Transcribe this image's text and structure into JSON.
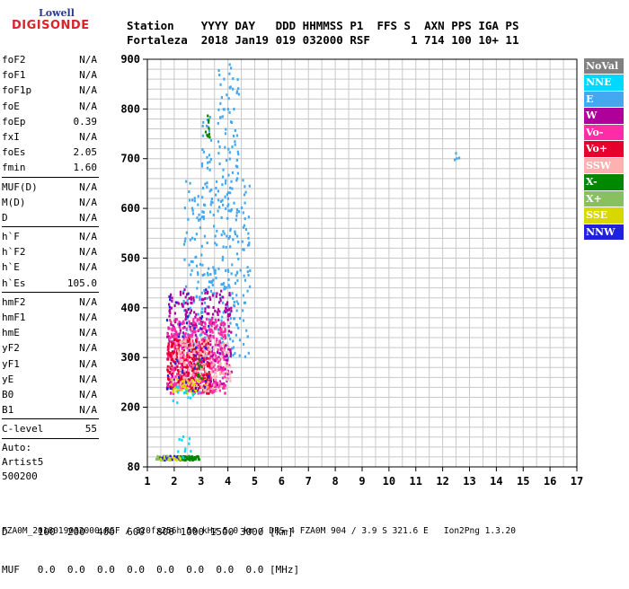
{
  "logo": {
    "line1": "Lowell",
    "line2": "DIGISONDE"
  },
  "header": {
    "line1": "Station    YYYY DAY   DDD HHMMSS P1  FFS S  AXN PPS IGA PS",
    "line2": "Fortaleza  2018 Jan19 019 032000 RSF      1 714 100 10+ 11"
  },
  "params": {
    "group1": [
      {
        "k": "foF2",
        "v": "N/A"
      },
      {
        "k": "foF1",
        "v": "N/A"
      },
      {
        "k": "foF1p",
        "v": "N/A"
      },
      {
        "k": "foE",
        "v": "N/A"
      },
      {
        "k": "foEp",
        "v": "0.39"
      },
      {
        "k": "fxI",
        "v": "N/A"
      },
      {
        "k": "foEs",
        "v": "2.05"
      },
      {
        "k": "fmin",
        "v": "1.60"
      }
    ],
    "group2": [
      {
        "k": "MUF(D)",
        "v": "N/A"
      },
      {
        "k": "M(D)",
        "v": "N/A"
      },
      {
        "k": "D",
        "v": "N/A"
      }
    ],
    "group3": [
      {
        "k": "h`F",
        "v": "N/A"
      },
      {
        "k": "h`F2",
        "v": "N/A"
      },
      {
        "k": "h`E",
        "v": "N/A"
      },
      {
        "k": "h`Es",
        "v": "105.0"
      }
    ],
    "group4": [
      {
        "k": "hmF2",
        "v": "N/A"
      },
      {
        "k": "hmF1",
        "v": "N/A"
      },
      {
        "k": "hmE",
        "v": "N/A"
      },
      {
        "k": "yF2",
        "v": "N/A"
      },
      {
        "k": "yF1",
        "v": "N/A"
      },
      {
        "k": "yE",
        "v": "N/A"
      },
      {
        "k": "B0",
        "v": "N/A"
      },
      {
        "k": "B1",
        "v": "N/A"
      }
    ],
    "group5": [
      {
        "k": "C-level",
        "v": "55"
      }
    ],
    "auto": [
      "Auto:",
      "Artist5",
      "500200"
    ]
  },
  "legend": [
    {
      "label": "NoVal",
      "color": "#808080"
    },
    {
      "label": "NNE",
      "color": "#00d8ff"
    },
    {
      "label": "E",
      "color": "#44a8f0"
    },
    {
      "label": "W",
      "color": "#b0009c"
    },
    {
      "label": "Vo-",
      "color": "#ff2ca8"
    },
    {
      "label": "Vo+",
      "color": "#e8002c"
    },
    {
      "label": "SSW",
      "color": "#ffb0b0"
    },
    {
      "label": "X-",
      "color": "#008800"
    },
    {
      "label": "X+",
      "color": "#88c060"
    },
    {
      "label": "SSE",
      "color": "#d8d800"
    },
    {
      "label": "NNW",
      "color": "#2020e0"
    }
  ],
  "footer": {
    "line1": "D     100  200  400  600  800 1000 1500 3000 [km]",
    "line2": "MUF   0.0  0.0  0.0  0.0  0.0  0.0  0.0  0.0 [MHz]",
    "line3": "FZA0M_2018019032000.RSF / 320fx256h 50 kHz 5.0 km / DPS-4 FZA0M 904 / 3.9 S 321.6 E   Ion2Png 1.3.20"
  },
  "chart_data": {
    "type": "scatter",
    "title": "",
    "xlabel": "",
    "ylabel": "",
    "xlim": [
      1,
      17
    ],
    "ylim": [
      80,
      900
    ],
    "xticks": [
      1,
      2,
      3,
      4,
      5,
      6,
      7,
      8,
      9,
      10,
      11,
      12,
      13,
      14,
      15,
      16,
      17
    ],
    "yticks": [
      80,
      200,
      300,
      400,
      500,
      600,
      700,
      800,
      900
    ],
    "grid": true,
    "clusters": [
      {
        "series": "E",
        "f": [
          2.3,
          4.8
        ],
        "h": [
          300,
          660
        ],
        "n": 320
      },
      {
        "series": "E",
        "f": [
          3.6,
          4.4
        ],
        "h": [
          660,
          900
        ],
        "n": 60
      },
      {
        "series": "E",
        "f": [
          3.0,
          3.4
        ],
        "h": [
          680,
          800
        ],
        "n": 20
      },
      {
        "series": "E",
        "f": [
          12.4,
          12.6
        ],
        "h": [
          700,
          715
        ],
        "n": 4
      },
      {
        "series": "W",
        "f": [
          1.7,
          4.1
        ],
        "h": [
          240,
          440
        ],
        "n": 340
      },
      {
        "series": "Vo-",
        "f": [
          1.7,
          3.9
        ],
        "h": [
          230,
          380
        ],
        "n": 420
      },
      {
        "series": "Vo+",
        "f": [
          1.7,
          3.3
        ],
        "h": [
          230,
          340
        ],
        "n": 260
      },
      {
        "series": "SSW",
        "f": [
          2.0,
          4.1
        ],
        "h": [
          235,
          340
        ],
        "n": 160
      },
      {
        "series": "SSE",
        "f": [
          1.8,
          3.2
        ],
        "h": [
          230,
          260
        ],
        "n": 40
      },
      {
        "series": "X-",
        "f": [
          2.1,
          2.9
        ],
        "h": [
          96,
          104
        ],
        "n": 60
      },
      {
        "series": "X-",
        "f": [
          2.8,
          3.0
        ],
        "h": [
          255,
          300
        ],
        "n": 10
      },
      {
        "series": "X-",
        "f": [
          3.1,
          3.3
        ],
        "h": [
          740,
          790
        ],
        "n": 10
      },
      {
        "series": "X+",
        "f": [
          1.3,
          1.8
        ],
        "h": [
          96,
          104
        ],
        "n": 24
      },
      {
        "series": "NNW",
        "f": [
          1.4,
          2.2
        ],
        "h": [
          96,
          104
        ],
        "n": 20
      },
      {
        "series": "NNW",
        "f": [
          1.6,
          3.3
        ],
        "h": [
          230,
          440
        ],
        "n": 40
      },
      {
        "series": "SSE",
        "f": [
          1.4,
          2.2
        ],
        "h": [
          96,
          104
        ],
        "n": 14
      },
      {
        "series": "NNE",
        "f": [
          1.9,
          2.6
        ],
        "h": [
          100,
          150
        ],
        "n": 10
      },
      {
        "series": "NNE",
        "f": [
          1.9,
          3.0
        ],
        "h": [
          200,
          250
        ],
        "n": 12
      }
    ]
  }
}
